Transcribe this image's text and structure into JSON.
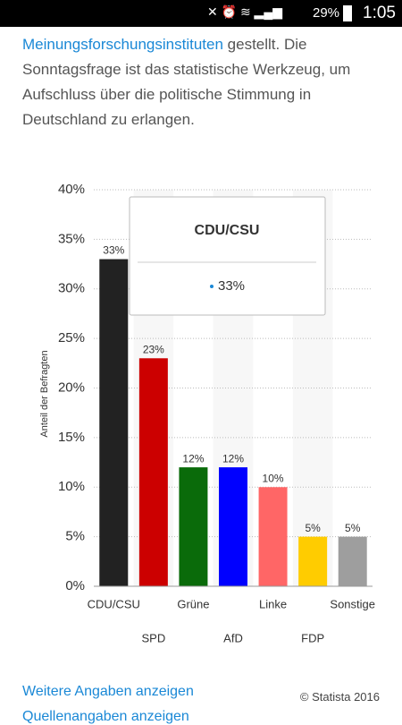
{
  "status_bar": {
    "battery": "29%",
    "time": "1:05"
  },
  "intro": {
    "link": "Meinungsforschungsinstituten",
    "text": "gestellt. Die Sonntagsfrage ist das statistische Werkzeug, um Aufschluss über die politische Stimmung in Deutschland zu erlangen."
  },
  "chart_data": {
    "type": "bar",
    "y_label": "Anteil der Befragten",
    "categories": [
      "CDU/CSU",
      "SPD",
      "Grüne",
      "AfD",
      "Linke",
      "FDP",
      "Sonstige"
    ],
    "values": [
      33,
      23,
      12,
      12,
      10,
      5,
      5
    ],
    "value_labels": [
      "33%",
      "23%",
      "12%",
      "12%",
      "10%",
      "5%",
      "5%"
    ],
    "colors": [
      "#222222",
      "#cc0000",
      "#0a6b0a",
      "#0000ff",
      "#ff6666",
      "#ffcc00",
      "#9e9e9e"
    ],
    "ylim": [
      0,
      40
    ],
    "yticks": [
      {
        "value": 0,
        "label": "0%"
      },
      {
        "value": 5,
        "label": "5%"
      },
      {
        "value": 10,
        "label": "10%"
      },
      {
        "value": 15,
        "label": "15%"
      },
      {
        "value": 20,
        "label": "20%"
      },
      {
        "value": 25,
        "label": "25%"
      },
      {
        "value": 30,
        "label": "30%"
      },
      {
        "value": 35,
        "label": "35%"
      },
      {
        "value": 40,
        "label": "40%"
      }
    ],
    "grid": true
  },
  "footer": {
    "link": "Weitere Angaben anzeigen",
    "credit": "© Statista 2016",
    "next_link": "Quellenangaben anzeigen"
  }
}
